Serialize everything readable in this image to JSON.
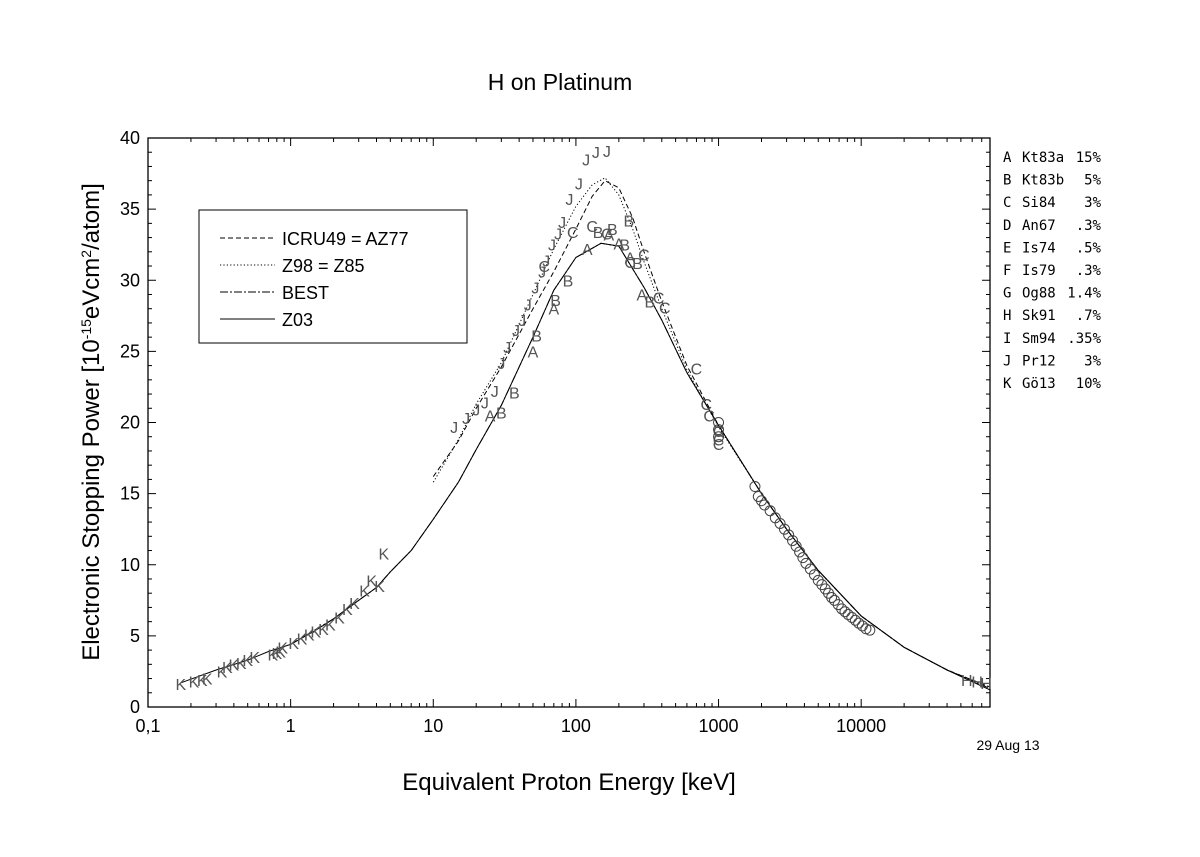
{
  "chart_data": {
    "type": "scatter",
    "title": "H on Platinum",
    "xlabel": "Equivalent Proton Energy [keV]",
    "ylabel_parts": [
      "Electronic Stopping Power [10",
      "-15",
      "eVcm",
      "2",
      "/atom]"
    ],
    "xscale": "log",
    "xlim": [
      0.1,
      80000
    ],
    "ylim": [
      0,
      40
    ],
    "x_ticks": [
      {
        "v": 0.1,
        "label": "0,1"
      },
      {
        "v": 1,
        "label": "1"
      },
      {
        "v": 10,
        "label": "10"
      },
      {
        "v": 100,
        "label": "100"
      },
      {
        "v": 1000,
        "label": "1000"
      },
      {
        "v": 10000,
        "label": "10000"
      }
    ],
    "y_ticks": [
      0,
      5,
      10,
      15,
      20,
      25,
      30,
      35,
      40
    ],
    "date_stamp": "29 Aug 13",
    "legend_placement": "upper-left",
    "curves": [
      {
        "name": "ICRU49 = AZ77",
        "dash": "5,3",
        "points": [
          [
            10,
            16.2
          ],
          [
            15,
            18.7
          ],
          [
            20,
            21.0
          ],
          [
            30,
            23.9
          ],
          [
            50,
            28.0
          ],
          [
            70,
            30.6
          ],
          [
            100,
            33.6
          ],
          [
            130,
            35.9
          ],
          [
            160,
            37.0
          ],
          [
            200,
            36.5
          ],
          [
            250,
            34.4
          ],
          [
            300,
            32.0
          ],
          [
            400,
            28.5
          ],
          [
            600,
            24.0
          ],
          [
            1000,
            19.8
          ],
          [
            2000,
            15.0
          ],
          [
            3000,
            12.5
          ],
          [
            5000,
            9.6
          ],
          [
            10000,
            6.4
          ],
          [
            20000,
            4.2
          ],
          [
            40000,
            2.6
          ],
          [
            80000,
            1.4
          ]
        ]
      },
      {
        "name": "Z98 = Z85",
        "dash": "1.2,2.2",
        "points": [
          [
            10,
            15.8
          ],
          [
            15,
            18.8
          ],
          [
            20,
            21.3
          ],
          [
            30,
            24.2
          ],
          [
            50,
            29.0
          ],
          [
            70,
            32.2
          ],
          [
            100,
            35.2
          ],
          [
            130,
            36.7
          ],
          [
            160,
            37.2
          ],
          [
            200,
            36.0
          ],
          [
            250,
            33.6
          ],
          [
            300,
            31.3
          ],
          [
            400,
            28.0
          ],
          [
            600,
            23.7
          ],
          [
            1000,
            19.7
          ],
          [
            2000,
            15.0
          ],
          [
            3000,
            12.5
          ],
          [
            5000,
            9.6
          ],
          [
            10000,
            6.4
          ],
          [
            20000,
            4.2
          ],
          [
            40000,
            2.6
          ],
          [
            80000,
            1.4
          ]
        ]
      },
      {
        "name": "BEST",
        "dash": "8,2,2,2",
        "points": [
          [
            1,
            4.4
          ],
          [
            2,
            6.2
          ],
          [
            3,
            7.5
          ],
          [
            4,
            8.4
          ],
          [
            5,
            9.5
          ],
          [
            7,
            11.0
          ],
          [
            10,
            13.2
          ],
          [
            15,
            15.8
          ],
          [
            20,
            18.1
          ],
          [
            30,
            21.2
          ],
          [
            50,
            26.0
          ],
          [
            70,
            29.3
          ],
          [
            100,
            31.6
          ],
          [
            150,
            32.6
          ],
          [
            200,
            32.4
          ],
          [
            300,
            29.5
          ],
          [
            400,
            27.2
          ],
          [
            600,
            23.5
          ],
          [
            1000,
            19.8
          ],
          [
            2000,
            15.0
          ],
          [
            3000,
            12.5
          ],
          [
            5000,
            9.6
          ],
          [
            10000,
            6.4
          ],
          [
            20000,
            4.2
          ],
          [
            40000,
            2.6
          ],
          [
            80000,
            1.3
          ]
        ]
      },
      {
        "name": "Z03",
        "dash": "",
        "points": [
          [
            0.17,
            1.7
          ],
          [
            0.3,
            2.6
          ],
          [
            0.5,
            3.3
          ],
          [
            0.7,
            3.9
          ],
          [
            1,
            4.4
          ],
          [
            1.5,
            5.4
          ],
          [
            2,
            6.2
          ],
          [
            3,
            7.5
          ],
          [
            4,
            8.4
          ],
          [
            5,
            9.5
          ],
          [
            7,
            11.0
          ],
          [
            10,
            13.2
          ],
          [
            15,
            15.8
          ],
          [
            20,
            18.1
          ],
          [
            30,
            21.2
          ],
          [
            50,
            26.0
          ],
          [
            70,
            29.3
          ],
          [
            100,
            31.6
          ],
          [
            150,
            32.6
          ],
          [
            200,
            32.4
          ],
          [
            300,
            29.5
          ],
          [
            400,
            27.2
          ],
          [
            600,
            23.5
          ],
          [
            1000,
            19.8
          ],
          [
            2000,
            15.0
          ],
          [
            3000,
            12.5
          ],
          [
            5000,
            9.6
          ],
          [
            10000,
            6.4
          ],
          [
            20000,
            4.2
          ],
          [
            40000,
            2.6
          ],
          [
            80000,
            1.2
          ]
        ]
      }
    ],
    "datasets": [
      {
        "letter": "A",
        "ref": "Kt83a",
        "err": "15%",
        "points": [
          [
            25,
            20.5
          ],
          [
            50,
            25.0
          ],
          [
            70,
            28.0
          ],
          [
            120,
            32.2
          ],
          [
            170,
            33.2
          ],
          [
            200,
            32.6
          ],
          [
            240,
            31.6
          ],
          [
            290,
            29.0
          ]
        ]
      },
      {
        "letter": "B",
        "ref": "Kt83b",
        "err": "5%",
        "points": [
          [
            30,
            20.7
          ],
          [
            37,
            22.1
          ],
          [
            53,
            26.1
          ],
          [
            72,
            28.6
          ],
          [
            88,
            30.0
          ],
          [
            143,
            33.4
          ],
          [
            180,
            33.6
          ],
          [
            220,
            32.5
          ],
          [
            235,
            34.2
          ],
          [
            270,
            31.2
          ],
          [
            330,
            28.5
          ]
        ]
      },
      {
        "letter": "C",
        "ref": "Si84",
        "err": "3%",
        "points": [
          [
            60,
            31.0
          ],
          [
            95,
            33.4
          ],
          [
            130,
            33.8
          ],
          [
            165,
            33.3
          ],
          [
            240,
            31.3
          ],
          [
            300,
            31.8
          ],
          [
            380,
            28.8
          ],
          [
            420,
            28.1
          ],
          [
            700,
            23.8
          ],
          [
            820,
            21.3
          ],
          [
            860,
            20.5
          ],
          [
            1000,
            19.4
          ],
          [
            1000,
            18.8
          ],
          [
            1000,
            18.5
          ]
        ]
      },
      {
        "letter": "J",
        "ref": "Pr12",
        "err": "3%",
        "points": [
          [
            14,
            19.7
          ],
          [
            17,
            20.3
          ],
          [
            20,
            20.9
          ],
          [
            23,
            21.4
          ],
          [
            27,
            22.2
          ],
          [
            30,
            24.2
          ],
          [
            33,
            25.3
          ],
          [
            38,
            26.5
          ],
          [
            42,
            27.2
          ],
          [
            46,
            28.3
          ],
          [
            52,
            29.5
          ],
          [
            58,
            30.6
          ],
          [
            62,
            31.4
          ],
          [
            68,
            32.5
          ],
          [
            75,
            33.3
          ],
          [
            80,
            34.1
          ],
          [
            90,
            35.7
          ],
          [
            105,
            36.8
          ],
          [
            118,
            38.5
          ],
          [
            138,
            39.0
          ],
          [
            165,
            39.1
          ]
        ]
      },
      {
        "letter": "K",
        "ref": "Gö13",
        "err": "10%",
        "points": [
          [
            0.17,
            1.6
          ],
          [
            0.21,
            1.8
          ],
          [
            0.24,
            1.9
          ],
          [
            0.26,
            2.0
          ],
          [
            0.33,
            2.5
          ],
          [
            0.36,
            2.8
          ],
          [
            0.4,
            3.0
          ],
          [
            0.45,
            3.1
          ],
          [
            0.5,
            3.3
          ],
          [
            0.56,
            3.5
          ],
          [
            0.75,
            3.7
          ],
          [
            0.8,
            3.8
          ],
          [
            0.85,
            3.9
          ],
          [
            0.88,
            4.2
          ],
          [
            1.05,
            4.5
          ],
          [
            1.2,
            4.8
          ],
          [
            1.35,
            5.1
          ],
          [
            1.5,
            5.3
          ],
          [
            1.7,
            5.5
          ],
          [
            1.9,
            5.8
          ],
          [
            2.2,
            6.3
          ],
          [
            2.5,
            6.9
          ],
          [
            2.8,
            7.3
          ],
          [
            3.3,
            8.2
          ],
          [
            3.7,
            8.9
          ],
          [
            4.2,
            8.5
          ],
          [
            4.5,
            10.8
          ]
        ]
      },
      {
        "letter": "H",
        "ref": "Sk91",
        "err": ".7%",
        "points": [
          [
            55000,
            1.9
          ],
          [
            65000,
            1.8
          ],
          [
            75000,
            1.7
          ]
        ]
      },
      {
        "letter": "D",
        "ref": "An67",
        "err": ".3%",
        "points": []
      },
      {
        "letter": "E",
        "ref": "Is74",
        "err": ".5%",
        "points": []
      },
      {
        "letter": "F",
        "ref": "Is79",
        "err": ".3%",
        "points": []
      },
      {
        "letter": "G",
        "ref": "Og88",
        "err": "1.4%",
        "points": []
      },
      {
        "letter": "I",
        "ref": "Sm94",
        "err": ".35%",
        "points": []
      }
    ],
    "reference_legend": [
      {
        "letter": "A",
        "ref": "Kt83a",
        "err": "15%"
      },
      {
        "letter": "B",
        "ref": "Kt83b",
        "err": "5%"
      },
      {
        "letter": "C",
        "ref": "Si84",
        "err": "3%"
      },
      {
        "letter": "D",
        "ref": "An67",
        "err": ".3%"
      },
      {
        "letter": "E",
        "ref": "Is74",
        "err": ".5%"
      },
      {
        "letter": "F",
        "ref": "Is79",
        "err": ".3%"
      },
      {
        "letter": "G",
        "ref": "Og88",
        "err": "1.4%"
      },
      {
        "letter": "H",
        "ref": "Sk91",
        "err": ".7%"
      },
      {
        "letter": "I",
        "ref": "Sm94",
        "err": ".35%"
      },
      {
        "letter": "J",
        "ref": "Pr12",
        "err": "3%"
      },
      {
        "letter": "K",
        "ref": "Gö13",
        "err": "10%"
      }
    ],
    "circle_markers": {
      "name": "Og88 / Sm94 / Is74 data (open circles)",
      "points": [
        [
          1000,
          20.0
        ],
        [
          1000,
          19.5
        ],
        [
          1000,
          19.0
        ],
        [
          1800,
          15.5
        ],
        [
          1900,
          14.8
        ],
        [
          2000,
          14.5
        ],
        [
          2100,
          14.2
        ],
        [
          2300,
          13.8
        ],
        [
          2500,
          13.3
        ],
        [
          2700,
          12.9
        ],
        [
          2900,
          12.5
        ],
        [
          3100,
          12.1
        ],
        [
          3300,
          11.7
        ],
        [
          3500,
          11.3
        ],
        [
          3700,
          10.9
        ],
        [
          3900,
          10.5
        ],
        [
          4100,
          10.1
        ],
        [
          4400,
          9.7
        ],
        [
          4700,
          9.3
        ],
        [
          5000,
          8.9
        ],
        [
          5300,
          8.6
        ],
        [
          5600,
          8.3
        ],
        [
          5900,
          8.0
        ],
        [
          6200,
          7.7
        ],
        [
          6500,
          7.5
        ],
        [
          6900,
          7.2
        ],
        [
          7300,
          6.9
        ],
        [
          7700,
          6.7
        ],
        [
          8100,
          6.5
        ],
        [
          8600,
          6.3
        ],
        [
          9100,
          6.1
        ],
        [
          9600,
          5.9
        ],
        [
          10200,
          5.7
        ],
        [
          10800,
          5.5
        ],
        [
          11500,
          5.4
        ]
      ]
    }
  }
}
